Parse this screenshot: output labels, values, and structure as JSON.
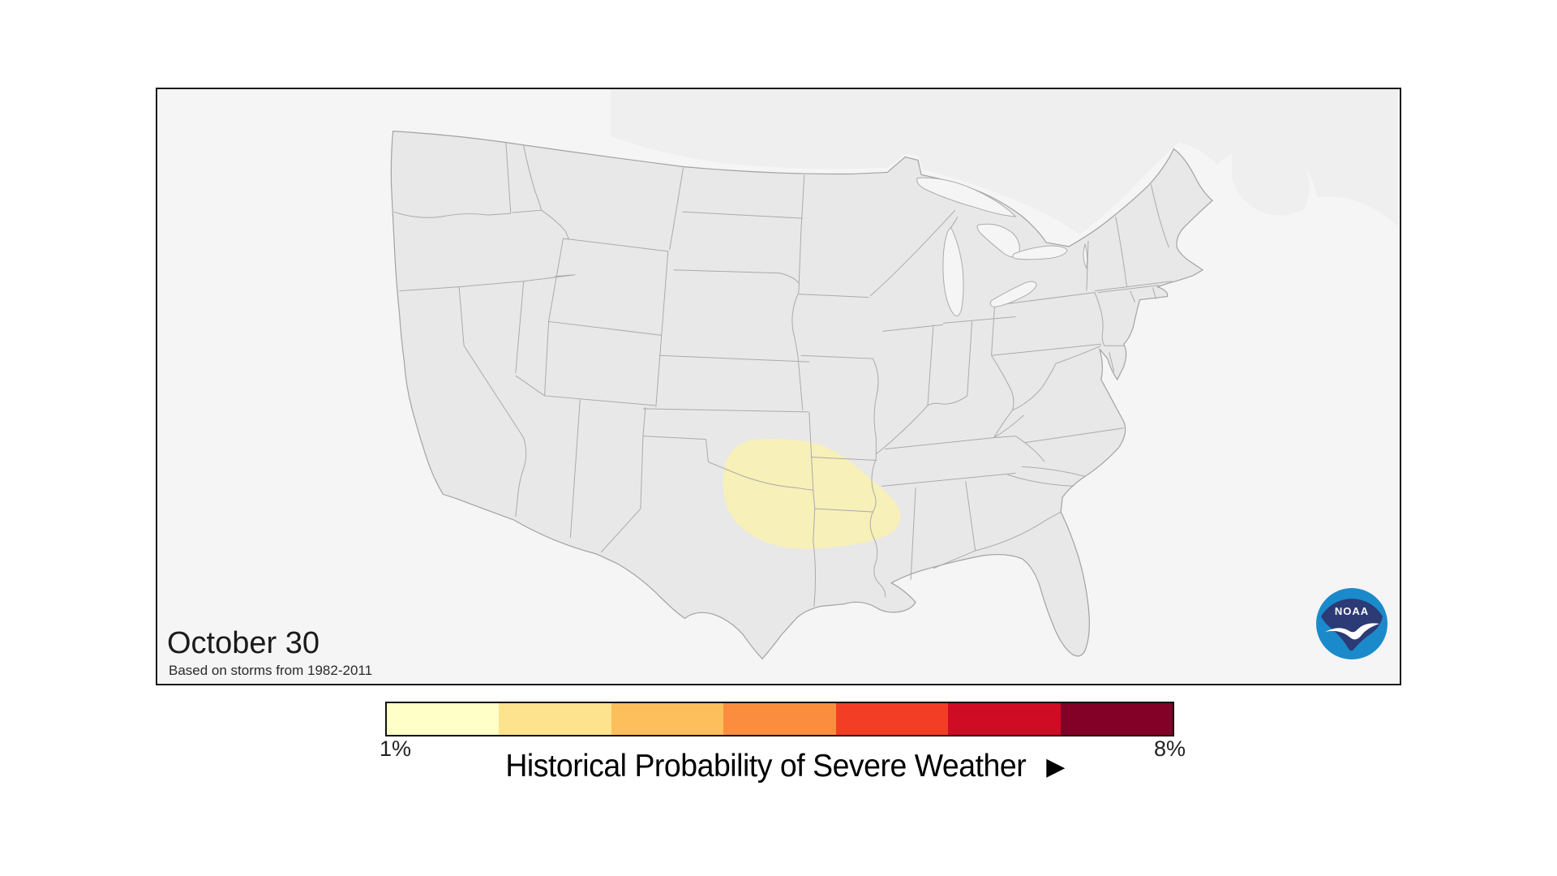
{
  "map_panel": {
    "date_label": "October 30",
    "subtitle": "Based on storms from 1982-2011",
    "noaa_logo_text": "NOAA",
    "colors": {
      "ocean": "#f5f5f5",
      "land": "#e8e8e8",
      "state_border": "#aaaaaa",
      "canada_land": "#efefef",
      "probability_blob": "#f8f0b5",
      "panel_border": "#1a1a1a",
      "noaa_navy": "#2c3a75",
      "noaa_blue": "#1b8acb"
    },
    "probability_area": {
      "value_bin": "1%",
      "location": "Southern Plains / Ozarks region"
    }
  },
  "legend": {
    "title": "Historical Probability of Severe Weather",
    "arrow_icon": "▶",
    "min_label": "1%",
    "max_label": "8%",
    "colors": [
      "#FFFFC8",
      "#FEE38F",
      "#FDBE5C",
      "#FA8E3E",
      "#F43D25",
      "#D00B24",
      "#830026"
    ]
  }
}
